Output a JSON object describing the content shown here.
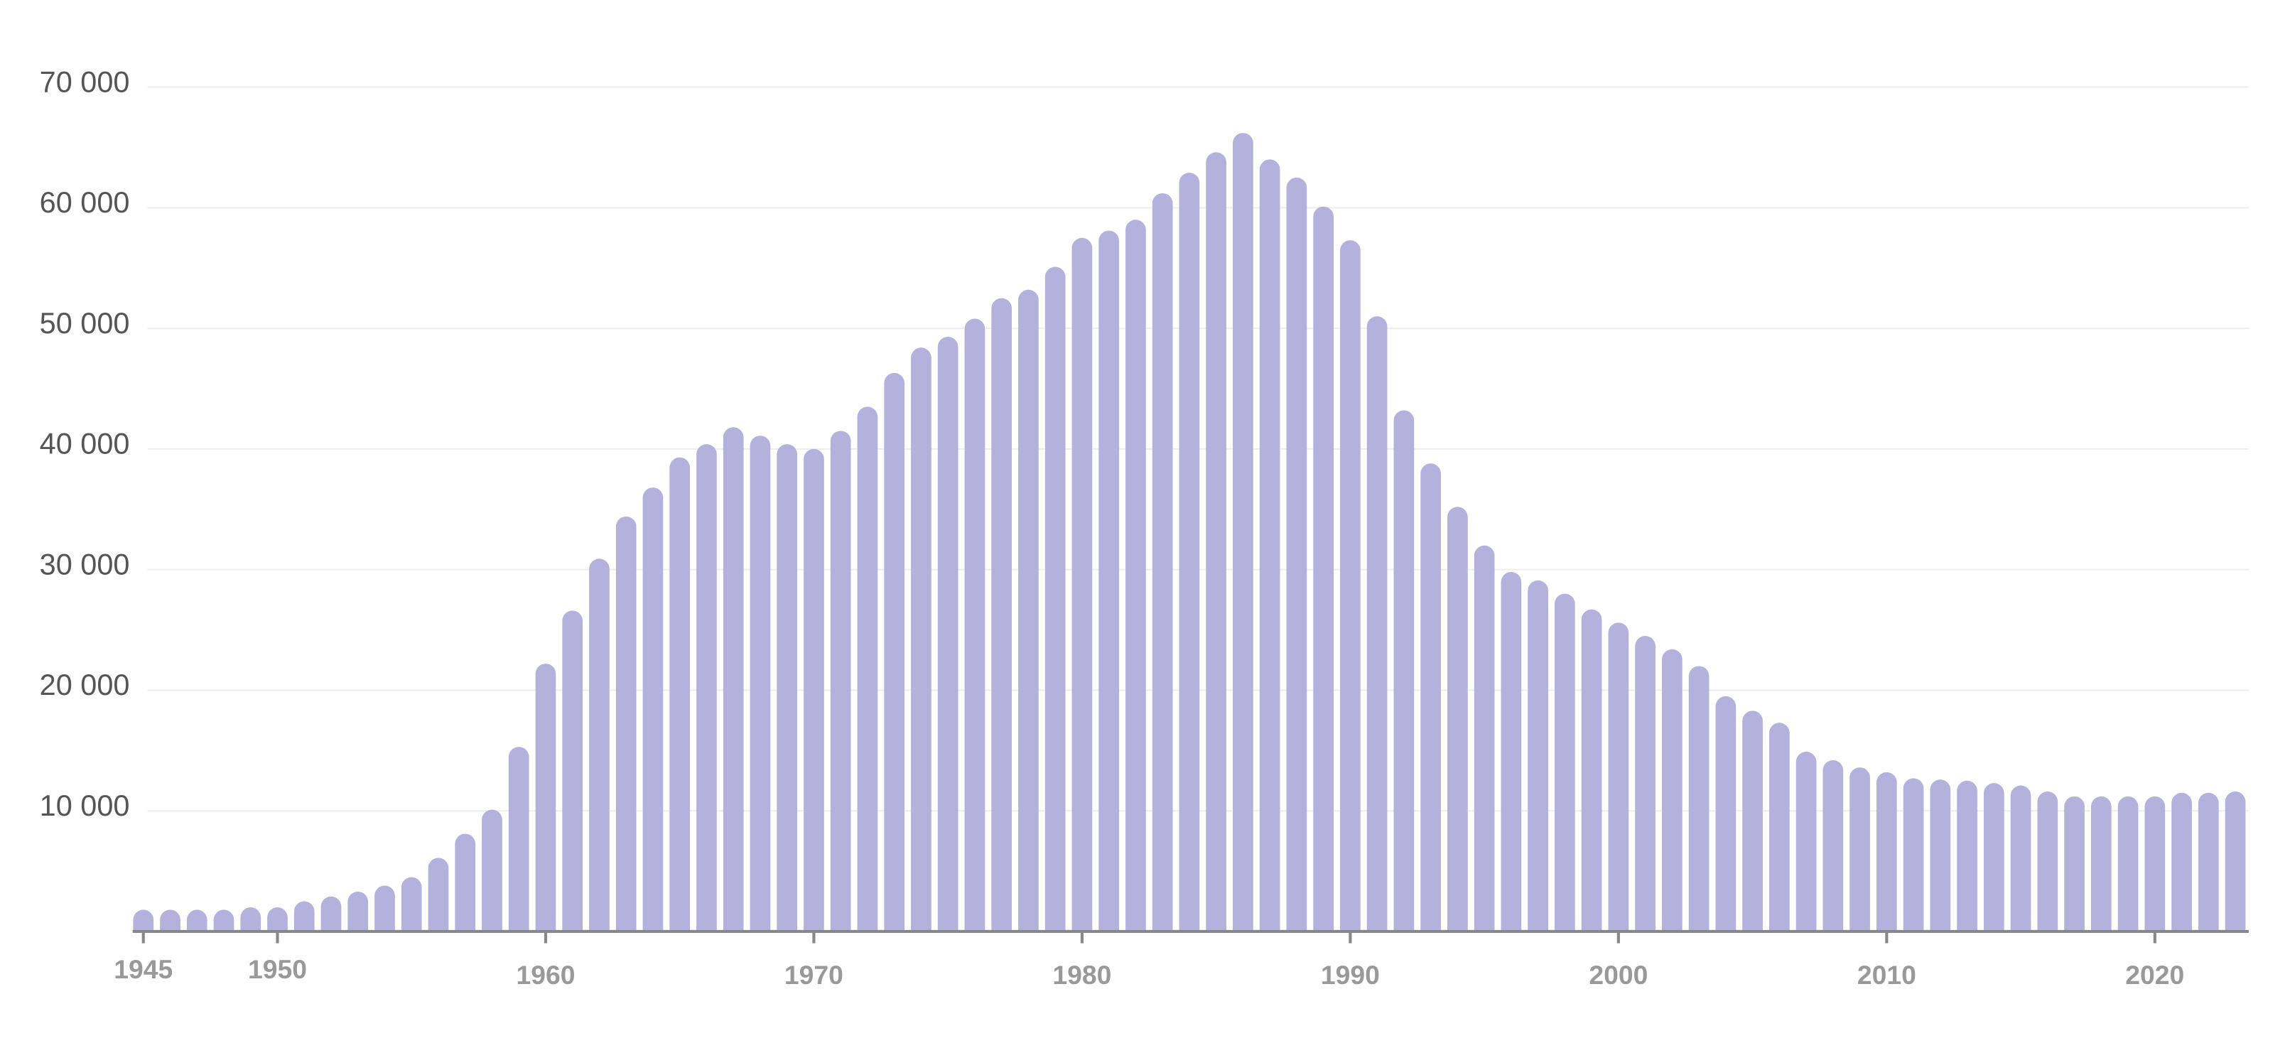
{
  "chart_data": {
    "type": "bar",
    "x": [
      1945,
      1946,
      1947,
      1948,
      1949,
      1950,
      1951,
      1952,
      1953,
      1954,
      1955,
      1956,
      1957,
      1958,
      1959,
      1960,
      1961,
      1962,
      1963,
      1964,
      1965,
      1966,
      1967,
      1968,
      1969,
      1970,
      1971,
      1972,
      1973,
      1974,
      1975,
      1976,
      1977,
      1978,
      1979,
      1980,
      1981,
      1982,
      1983,
      1984,
      1985,
      1986,
      1987,
      1988,
      1989,
      1990,
      1991,
      1992,
      1993,
      1994,
      1995,
      1996,
      1997,
      1998,
      1999,
      2000,
      2001,
      2002,
      2003,
      2004,
      2005,
      2006,
      2007,
      2008,
      2009,
      2010,
      2011,
      2012,
      2013,
      2014,
      2015,
      2016,
      2017,
      2018,
      2019,
      2020,
      2021,
      2022,
      2023
    ],
    "values": [
      1800,
      1800,
      1800,
      1800,
      2000,
      2000,
      2500,
      2900,
      3300,
      3800,
      4500,
      6100,
      8100,
      10100,
      15300,
      22200,
      26600,
      30900,
      34400,
      36800,
      39300,
      40400,
      41800,
      41100,
      40400,
      40000,
      41500,
      43500,
      46300,
      48400,
      49300,
      50800,
      52500,
      53200,
      55100,
      57500,
      58100,
      59000,
      61200,
      62900,
      64600,
      66200,
      64000,
      62500,
      60100,
      57300,
      51000,
      43200,
      38800,
      35200,
      32000,
      29800,
      29100,
      28000,
      26700,
      25600,
      24500,
      23400,
      22000,
      19500,
      18300,
      17300,
      14900,
      14200,
      13600,
      13200,
      12700,
      12600,
      12500,
      12300,
      12100,
      11600,
      11200,
      11200,
      11200,
      11200,
      11500,
      11500,
      11600
    ],
    "color": "#b4b1dd",
    "xlim": [
      1944.6,
      2023.5
    ],
    "xticks": [
      1945,
      1950,
      1960,
      1970,
      1980,
      1990,
      2000,
      2010,
      2020
    ],
    "ylim": [
      0,
      70000
    ],
    "yticks": [
      {
        "value": 10000,
        "label": "10 000"
      },
      {
        "value": 20000,
        "label": "20 000"
      },
      {
        "value": 30000,
        "label": "30 000"
      },
      {
        "value": 40000,
        "label": "40 000"
      },
      {
        "value": 50000,
        "label": "50 000"
      },
      {
        "value": 60000,
        "label": "60 000"
      },
      {
        "value": 70000,
        "label": "70 000"
      }
    ],
    "grid": true
  }
}
